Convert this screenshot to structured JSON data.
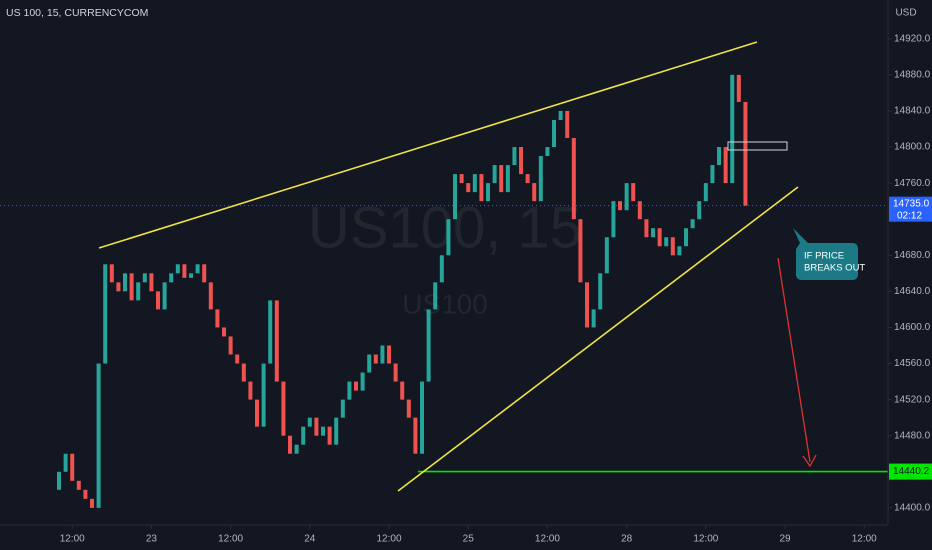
{
  "chart_data": {
    "type": "candlestick",
    "title": "US 100, 15, CURRENCYCOM",
    "watermark": "US100, 15",
    "watermark_sub": "US100",
    "currency": "USD",
    "up_color": "#26a69a",
    "down_color": "#ef5350",
    "open": 14420,
    "x": [
      10,
      11,
      12,
      13,
      14,
      15,
      16,
      17,
      18,
      19,
      20,
      21,
      22,
      23,
      24,
      25,
      26,
      27,
      28,
      29,
      30,
      31,
      32,
      33,
      34,
      35,
      36,
      37,
      38,
      39,
      40,
      41,
      42,
      43,
      44,
      45,
      46,
      47,
      48,
      49,
      50,
      51,
      52,
      53,
      54,
      55,
      56,
      57,
      58,
      59,
      60,
      61,
      62,
      63,
      64,
      65,
      66,
      67,
      68,
      69,
      70,
      71,
      72,
      73,
      74,
      75,
      76,
      77,
      78,
      79,
      80,
      81,
      82,
      83,
      84,
      85,
      86,
      87,
      88,
      89,
      90,
      91,
      92,
      93,
      94,
      95,
      96,
      97,
      98,
      99,
      100,
      101,
      102,
      103,
      104,
      105,
      106,
      107,
      108,
      109,
      110,
      111,
      112,
      113,
      114
    ],
    "values": [
      14440,
      14460,
      14430,
      14420,
      14410,
      14400,
      14560,
      14670,
      14650,
      14640,
      14660,
      14630,
      14650,
      14660,
      14640,
      14620,
      14650,
      14660,
      14670,
      14655,
      14660,
      14670,
      14650,
      14620,
      14600,
      14590,
      14570,
      14560,
      14540,
      14520,
      14490,
      14560,
      14630,
      14540,
      14480,
      14460,
      14470,
      14490,
      14500,
      14480,
      14490,
      14470,
      14500,
      14520,
      14540,
      14530,
      14550,
      14570,
      14560,
      14580,
      14560,
      14540,
      14520,
      14500,
      14460,
      14540,
      14620,
      14650,
      14680,
      14720,
      14770,
      14760,
      14750,
      14770,
      14740,
      14760,
      14780,
      14750,
      14780,
      14800,
      14770,
      14760,
      14740,
      14790,
      14800,
      14830,
      14840,
      14810,
      14720,
      14650,
      14600,
      14620,
      14660,
      14700,
      14740,
      14730,
      14760,
      14740,
      14720,
      14700,
      14710,
      14690,
      14700,
      14680,
      14690,
      14710,
      14720,
      14740,
      14760,
      14780,
      14800,
      14760,
      14880,
      14850,
      14735
    ],
    "xlim": [
      1.06,
      135.6
    ],
    "xticks": [
      {
        "value": 12,
        "label": "12:00"
      },
      {
        "value": 24,
        "label": "23"
      },
      {
        "value": 36,
        "label": "12:00"
      },
      {
        "value": 48,
        "label": "24"
      },
      {
        "value": 60,
        "label": "12:00"
      },
      {
        "value": 72,
        "label": "25"
      },
      {
        "value": 84,
        "label": "12:00"
      },
      {
        "value": 96,
        "label": "28"
      },
      {
        "value": 108,
        "label": "12:00"
      },
      {
        "value": 120,
        "label": "29"
      },
      {
        "value": 132,
        "label": "12:00"
      }
    ],
    "ylim": [
      14381,
      14963
    ],
    "yticks": [
      {
        "value": 14400,
        "label": "14400.0"
      },
      {
        "value": 14480,
        "label": "14480.0"
      },
      {
        "value": 14520,
        "label": "14520.0"
      },
      {
        "value": 14560,
        "label": "14560.0"
      },
      {
        "value": 14600,
        "label": "14600.0"
      },
      {
        "value": 14640,
        "label": "14640.0"
      },
      {
        "value": 14680,
        "label": "14680.0"
      },
      {
        "value": 14760,
        "label": "14760.0"
      },
      {
        "value": 14800,
        "label": "14800.0"
      },
      {
        "value": 14840,
        "label": "14840.0"
      },
      {
        "value": 14880,
        "label": "14880.0"
      },
      {
        "value": 14920,
        "label": "14920.0"
      }
    ],
    "last_price": {
      "value": 14735,
      "label": "14735.0"
    },
    "countdown": "02:12",
    "target": 14440.2,
    "note": [
      "IF PRICE",
      "BREAKS OUT"
    ]
  }
}
